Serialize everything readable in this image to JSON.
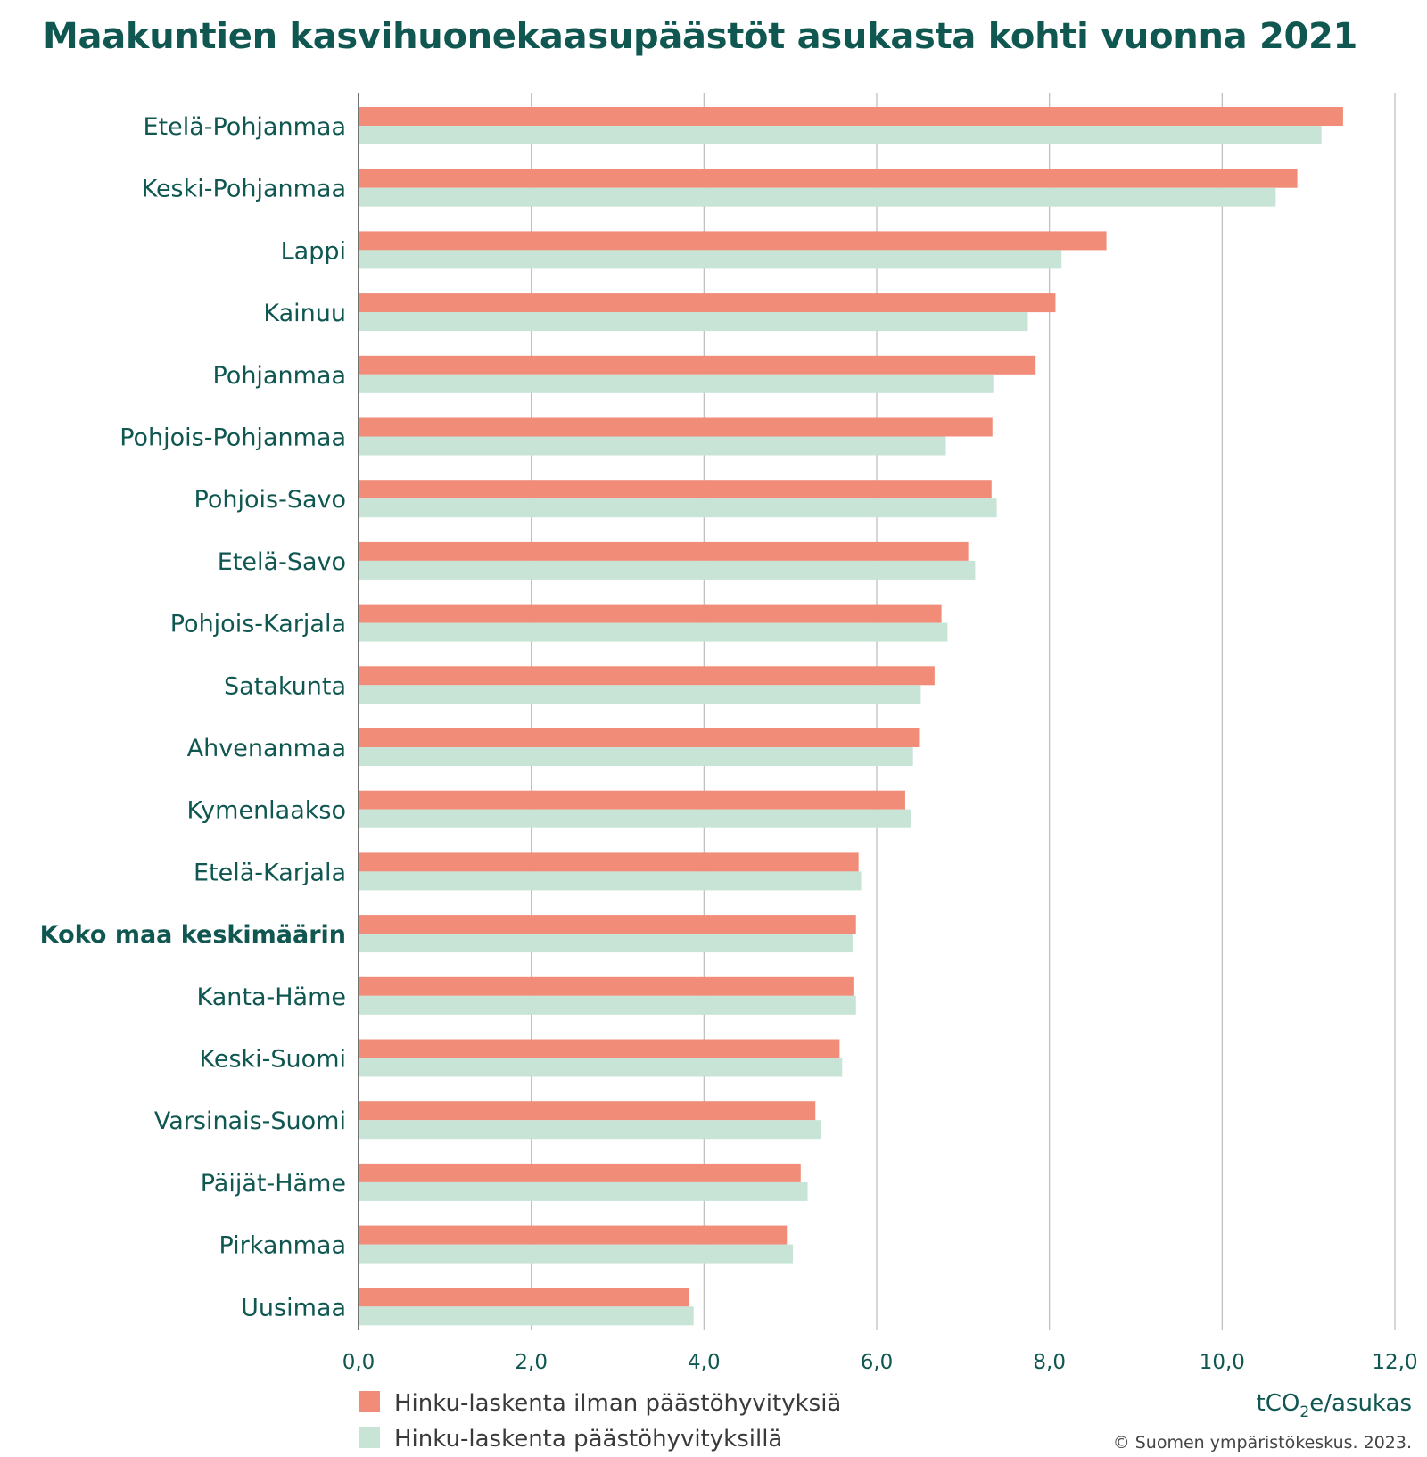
{
  "title": "Maakuntien kasvihuonekaasupäästöt asukasta kohti vuonna 2021",
  "unit_label": {
    "main": "tCO",
    "sub": "2",
    "rest": "e/asukas"
  },
  "credit": "© Suomen ympäristökeskus. 2023.",
  "colors": {
    "series1": "#f08c78",
    "series2": "#c7e4d6",
    "text": "#0f5750",
    "grid": "#bbbbbb"
  },
  "chart_data": {
    "type": "bar",
    "orientation": "horizontal",
    "title": "Maakuntien kasvihuonekaasupäästöt asukasta kohti vuonna 2021",
    "xlabel": "tCO2e/asukas",
    "ylabel": "",
    "xlim": [
      0,
      12
    ],
    "xticks": [
      "0,0",
      "2,0",
      "4,0",
      "6,0",
      "8,0",
      "10,0",
      "12,0"
    ],
    "grid": true,
    "legend_position": "bottom-left",
    "highlight_category": "Koko maa keskimäärin",
    "categories": [
      "Etelä-Pohjanmaa",
      "Keski-Pohjanmaa",
      "Lappi",
      "Kainuu",
      "Pohjanmaa",
      "Pohjois-Pohjanmaa",
      "Pohjois-Savo",
      "Etelä-Savo",
      "Pohjois-Karjala",
      "Satakunta",
      "Ahvenanmaa",
      "Kymenlaakso",
      "Etelä-Karjala",
      "Koko maa keskimäärin",
      "Kanta-Häme",
      "Keski-Suomi",
      "Varsinais-Suomi",
      "Päijät-Häme",
      "Pirkanmaa",
      "Uusimaa"
    ],
    "series": [
      {
        "name": "Hinku-laskenta ilman päästöhyvityksiä",
        "values": [
          11.4,
          10.87,
          8.66,
          8.07,
          7.84,
          7.34,
          7.33,
          7.06,
          6.75,
          6.67,
          6.49,
          6.33,
          5.79,
          5.76,
          5.73,
          5.57,
          5.29,
          5.12,
          4.96,
          3.83
        ]
      },
      {
        "name": "Hinku-laskenta päästöhyvityksillä",
        "values": [
          11.15,
          10.62,
          8.14,
          7.75,
          7.35,
          6.8,
          7.39,
          7.14,
          6.82,
          6.51,
          6.42,
          6.4,
          5.82,
          5.72,
          5.76,
          5.6,
          5.35,
          5.2,
          5.03,
          3.88
        ]
      }
    ]
  }
}
